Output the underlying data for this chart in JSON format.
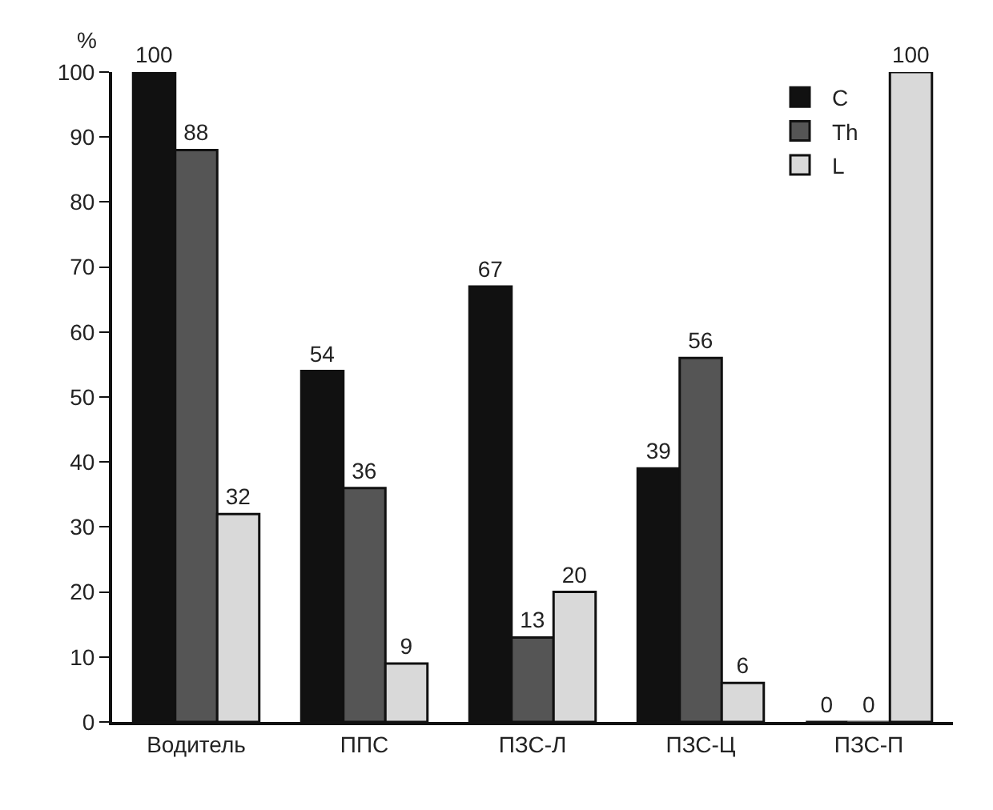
{
  "chart_data": {
    "type": "bar",
    "ylabel": "%",
    "categories": [
      "Водитель",
      "ППС",
      "ПЗС-Л",
      "ПЗС-Ц",
      "ПЗС-П"
    ],
    "series": [
      {
        "name": "C",
        "color": "#111111",
        "values": [
          100,
          54,
          67,
          39,
          0
        ]
      },
      {
        "name": "Th",
        "color": "#555555",
        "values": [
          88,
          36,
          13,
          56,
          0
        ]
      },
      {
        "name": "L",
        "color": "#d9d9d9",
        "values": [
          32,
          9,
          20,
          6,
          100
        ]
      }
    ],
    "ylim": [
      0,
      100
    ],
    "yticks": [
      0,
      10,
      20,
      30,
      40,
      50,
      60,
      70,
      80,
      90,
      100
    ],
    "legend": "top right",
    "data_labels": true
  }
}
